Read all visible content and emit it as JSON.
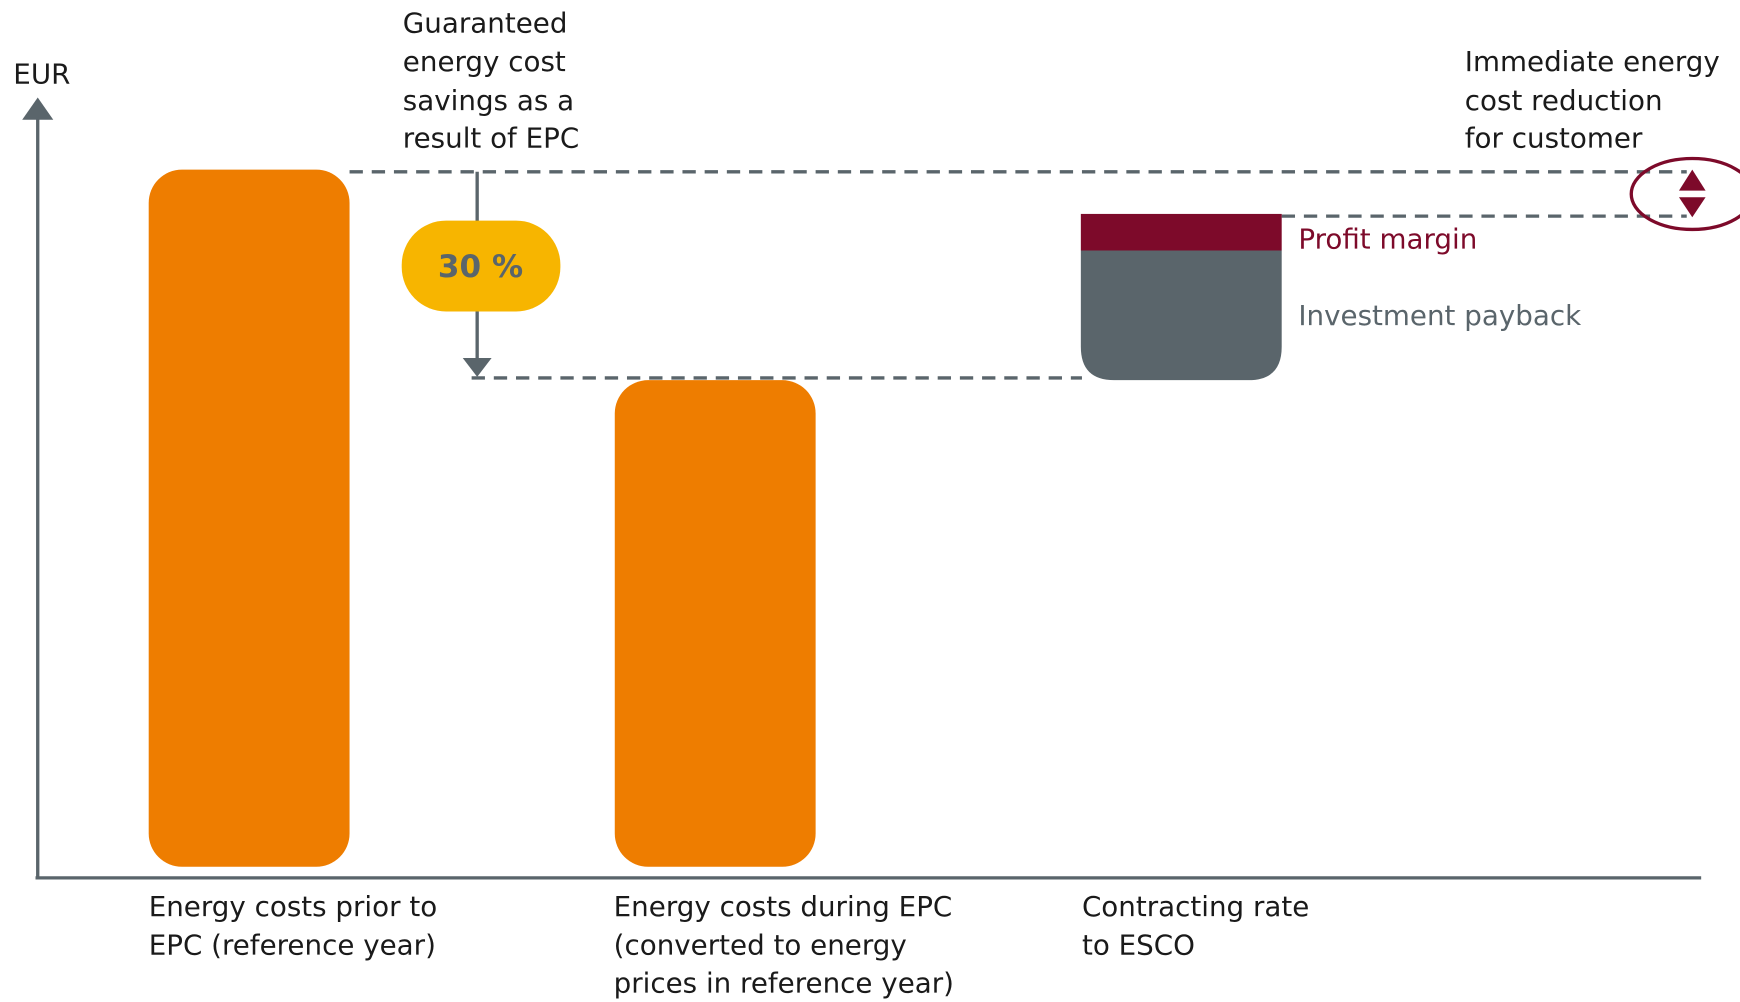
{
  "axis_label": "EUR",
  "annotations": {
    "savings": [
      "Guaranteed",
      "energy cost",
      "savings as a",
      "result of EPC"
    ],
    "savings_percent": "30 %",
    "reduction": [
      "Immediate energy",
      "cost reduction",
      "for customer"
    ]
  },
  "legend": {
    "profit_margin": "Profit margin",
    "investment_payback": "Investment payback"
  },
  "bars": [
    {
      "label": [
        "Energy costs prior to",
        "EPC (reference year)"
      ]
    },
    {
      "label": [
        "Energy costs during EPC",
        "(converted to energy",
        "prices in reference year)"
      ]
    },
    {
      "label": [
        "Contracting rate",
        "to ESCO"
      ]
    }
  ]
}
